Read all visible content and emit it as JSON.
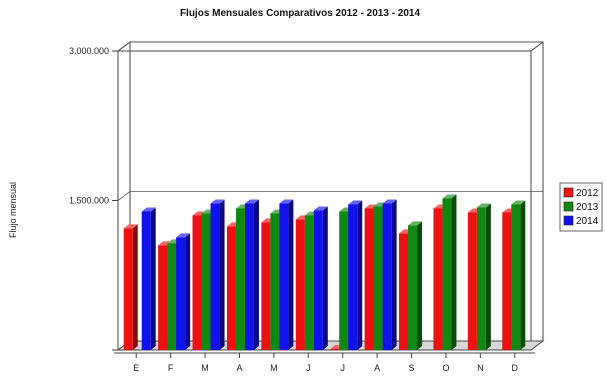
{
  "chart_data": {
    "type": "bar",
    "title": "Flujos Mensuales Comparativos 2012 - 2013 - 2014",
    "xlabel": "",
    "ylabel": "Flujo mensual",
    "categories": [
      "E",
      "F",
      "M",
      "A",
      "M",
      "J",
      "J",
      "A",
      "S",
      "O",
      "N",
      "D"
    ],
    "ylim": [
      0,
      3000000
    ],
    "yticks": [
      {
        "value": 1500000,
        "label": "1.500.000"
      },
      {
        "value": 3000000,
        "label": "3.000.000"
      }
    ],
    "grid": true,
    "legend_position": "right",
    "series": [
      {
        "name": "2012",
        "color": "#ee1111",
        "values": [
          1220000,
          1050000,
          1350000,
          1240000,
          1280000,
          1310000,
          10000,
          1420000,
          1170000,
          1420000,
          1380000,
          1380000
        ]
      },
      {
        "name": "2013",
        "color": "#118811",
        "values": [
          null,
          1070000,
          1370000,
          1420000,
          1370000,
          1350000,
          1390000,
          1440000,
          1250000,
          1520000,
          1430000,
          1460000
        ]
      },
      {
        "name": "2014",
        "color": "#1111ee",
        "values": [
          1390000,
          1130000,
          1470000,
          1470000,
          1470000,
          1400000,
          1460000,
          1470000,
          null,
          null,
          null,
          null
        ]
      }
    ]
  }
}
